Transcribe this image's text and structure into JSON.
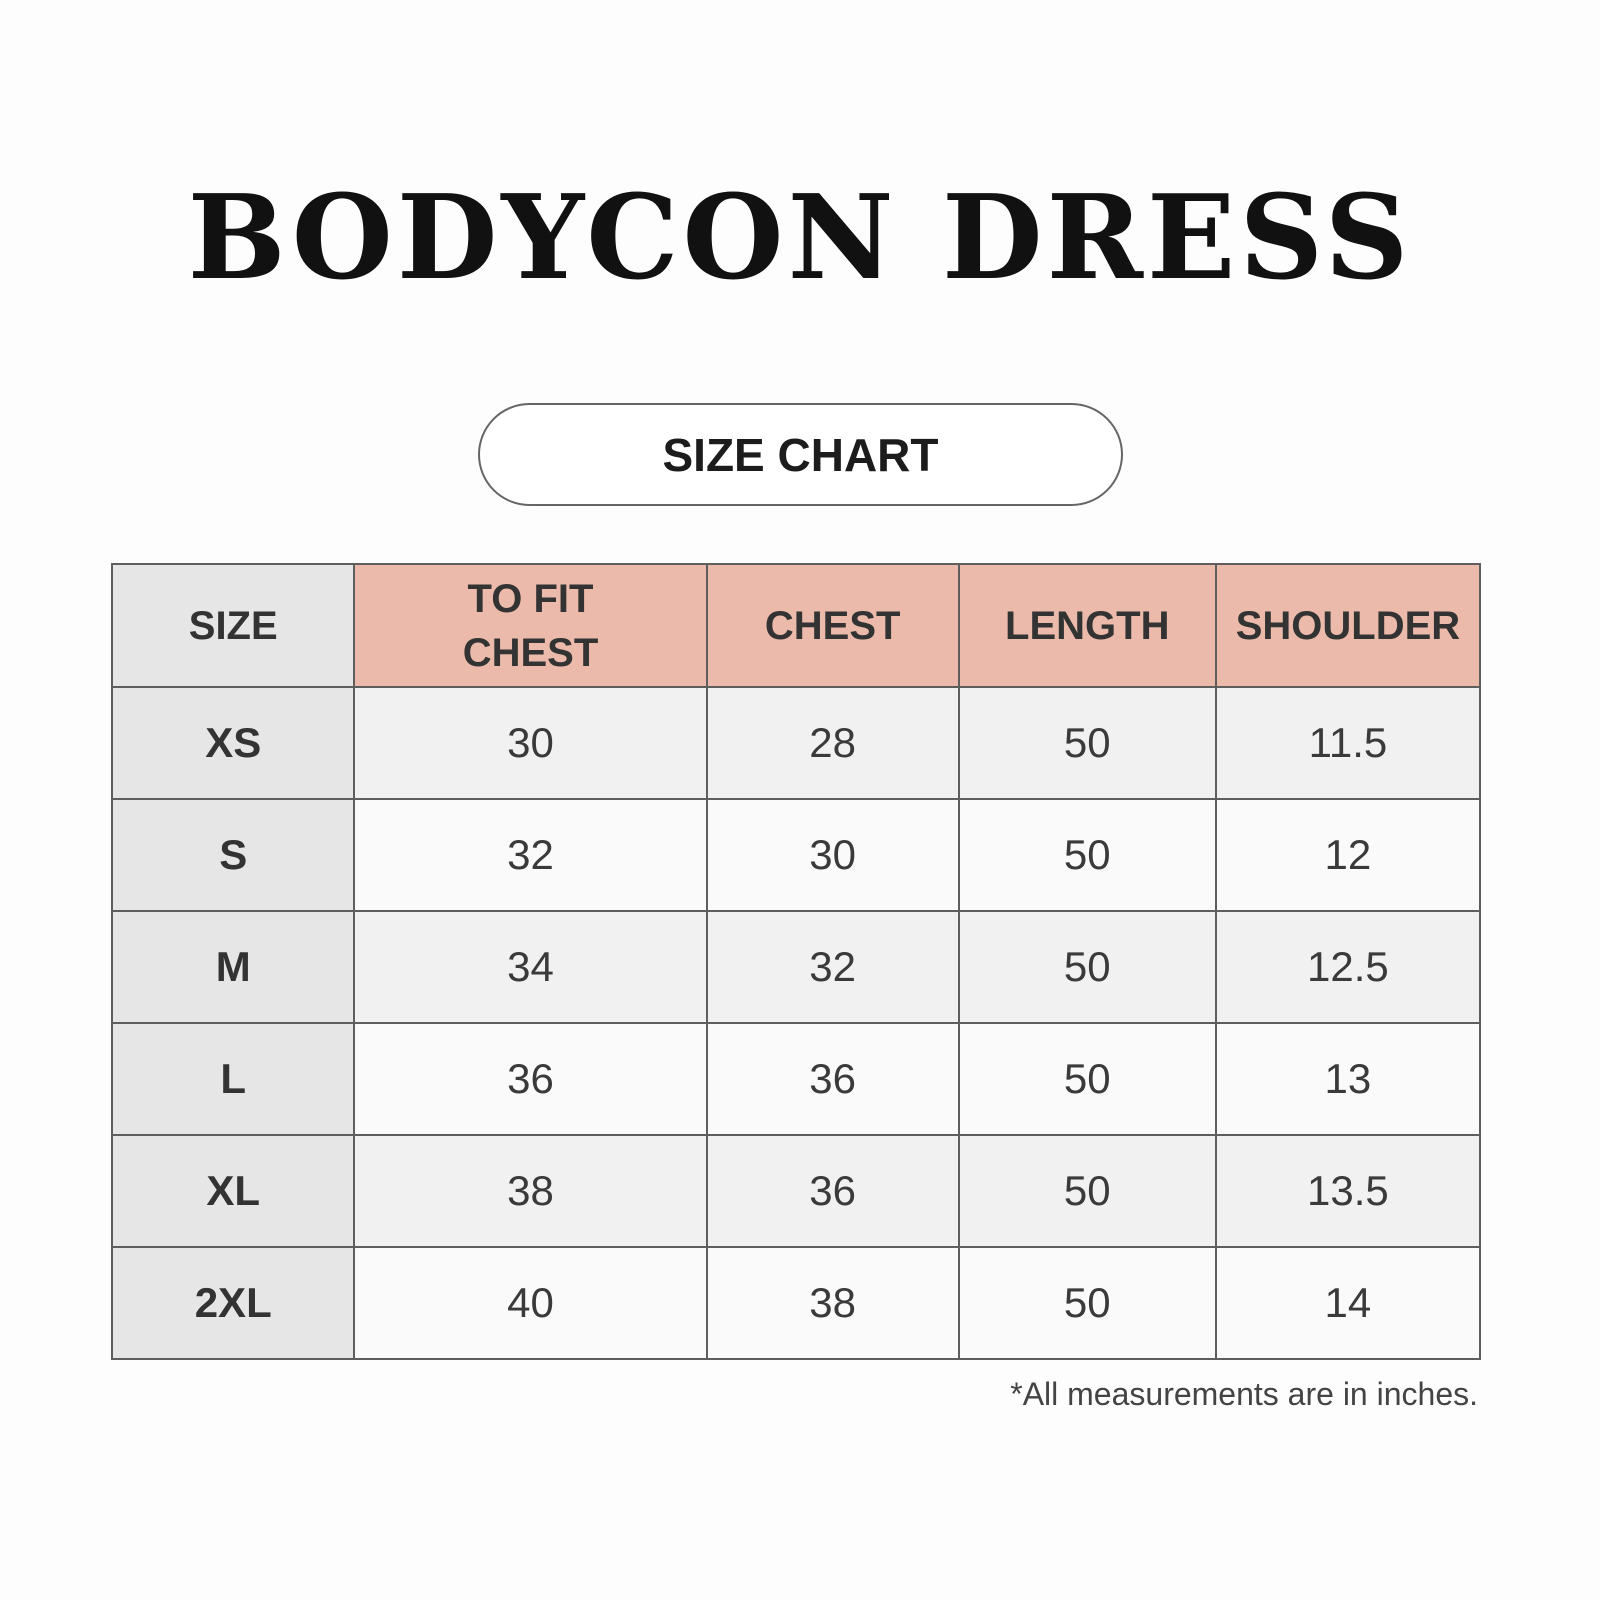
{
  "title": "BODYCON DRESS",
  "badge": "SIZE CHART",
  "colors": {
    "header_accent": "#ebbaab",
    "size_column": "#e6e6e6"
  },
  "table": {
    "headers": [
      "SIZE",
      "TO FIT CHEST",
      "CHEST",
      "LENGTH",
      "SHOULDER"
    ],
    "rows": [
      [
        "XS",
        "30",
        "28",
        "50",
        "11.5"
      ],
      [
        "S",
        "32",
        "30",
        "50",
        "12"
      ],
      [
        "M",
        "34",
        "32",
        "50",
        "12.5"
      ],
      [
        "L",
        "36",
        "36",
        "50",
        "13"
      ],
      [
        "XL",
        "38",
        "36",
        "50",
        "13.5"
      ],
      [
        "2XL",
        "40",
        "38",
        "50",
        "14"
      ]
    ]
  },
  "footnote": "*All measurements are in inches."
}
